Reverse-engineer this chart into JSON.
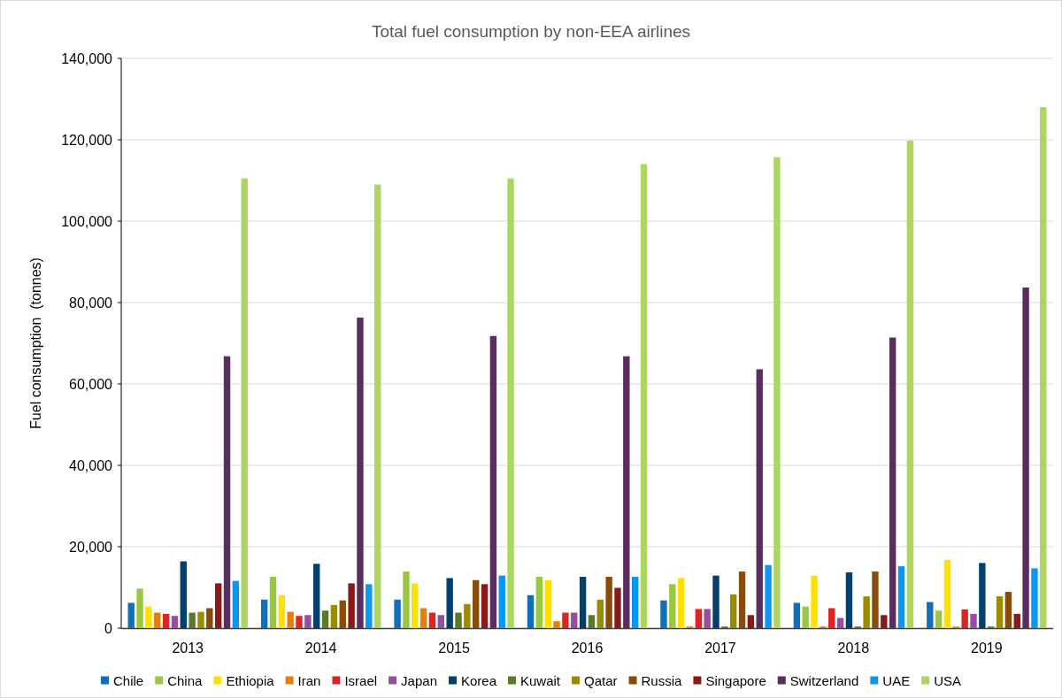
{
  "chart_data": {
    "type": "bar",
    "title": "Total fuel consumption by non-EEA airlines",
    "ylabel": "Fuel consumption  (tonnes)",
    "categories": [
      "2013",
      "2014",
      "2015",
      "2016",
      "2017",
      "2018",
      "2019"
    ],
    "series": [
      {
        "name": "Chile",
        "color": "#0f6fb8",
        "values": [
          6200,
          7000,
          7000,
          8100,
          6800,
          6200,
          6400
        ]
      },
      {
        "name": "China",
        "color": "#98c83e",
        "values": [
          9700,
          12600,
          13900,
          12600,
          10800,
          5300,
          4300
        ]
      },
      {
        "name": "Ethiopia",
        "color": "#ffe100",
        "values": [
          5300,
          8100,
          11000,
          11800,
          12300,
          12900,
          16800
        ]
      },
      {
        "name": "Iran",
        "color": "#e67e0a",
        "values": [
          3800,
          4000,
          4900,
          1700,
          400,
          400,
          400
        ]
      },
      {
        "name": "Israel",
        "color": "#e02424",
        "values": [
          3500,
          3000,
          3800,
          3800,
          4700,
          4900,
          4600
        ]
      },
      {
        "name": "Japan",
        "color": "#974ea2",
        "values": [
          3000,
          3200,
          3200,
          3800,
          4700,
          2500,
          3500
        ]
      },
      {
        "name": "Korea",
        "color": "#033f6c",
        "values": [
          16400,
          15800,
          12300,
          12600,
          12900,
          13700,
          16000
        ]
      },
      {
        "name": "Kuwait",
        "color": "#5b7a27",
        "values": [
          3800,
          4300,
          3800,
          3200,
          400,
          400,
          400
        ]
      },
      {
        "name": "Qatar",
        "color": "#9a8b00",
        "values": [
          4000,
          5700,
          5900,
          7000,
          8300,
          7800,
          7800
        ]
      },
      {
        "name": "Russia",
        "color": "#8a4b06",
        "values": [
          4900,
          6800,
          11800,
          12600,
          13900,
          13900,
          8900
        ]
      },
      {
        "name": "Singapore",
        "color": "#8a1a1a",
        "values": [
          11000,
          11000,
          10800,
          9900,
          3200,
          3200,
          3500
        ]
      },
      {
        "name": "Switzerland",
        "color": "#5a2c60",
        "values": [
          66800,
          76300,
          71800,
          66800,
          63600,
          71400,
          83700
        ]
      },
      {
        "name": "UAE",
        "color": "#0a96f5",
        "values": [
          11600,
          10800,
          12900,
          12600,
          15500,
          15200,
          14700
        ]
      },
      {
        "name": "USA",
        "color": "#acd65f",
        "values": [
          110500,
          109000,
          110500,
          114000,
          115700,
          119800,
          128000
        ]
      }
    ],
    "ylim": [
      0,
      140000
    ],
    "yticks": [
      0,
      {
        "value": 20000,
        "label": "20,000"
      },
      {
        "value": 40000,
        "label": "40,000"
      },
      {
        "value": 60000,
        "label": "60,000"
      },
      {
        "value": 80000,
        "label": "80,000"
      },
      {
        "value": 100000,
        "label": "100,000"
      },
      {
        "value": 120000,
        "label": "120,000"
      },
      {
        "value": 140000,
        "label": "140,000"
      }
    ],
    "grid": "y",
    "legend": "bottom"
  }
}
